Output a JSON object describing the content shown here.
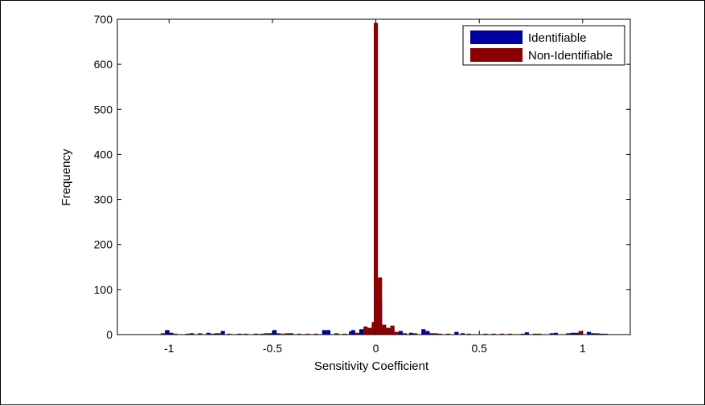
{
  "chart_data": {
    "type": "bar",
    "title": "",
    "xlabel": "Sensitivity Coefficient",
    "ylabel": "Frequency",
    "xlim": [
      -1.25,
      1.23
    ],
    "ylim": [
      0,
      700
    ],
    "xticks": [
      -1,
      -0.5,
      0,
      0.5,
      1
    ],
    "xtick_labels": [
      "-1",
      "-0.5",
      "0",
      "0.5",
      "1"
    ],
    "yticks": [
      0,
      100,
      200,
      300,
      400,
      500,
      600,
      700
    ],
    "ytick_labels": [
      "0",
      "100",
      "200",
      "300",
      "400",
      "500",
      "600",
      "700"
    ],
    "grid": false,
    "legend_position": "top-right",
    "bar_width": 0.02,
    "series": [
      {
        "name": "Identifiable",
        "color": "#0000a0",
        "bars": [
          {
            "x": -1.01,
            "y": 10
          },
          {
            "x": -0.99,
            "y": 4
          },
          {
            "x": -0.89,
            "y": 3
          },
          {
            "x": -0.81,
            "y": 4
          },
          {
            "x": -0.77,
            "y": 3
          },
          {
            "x": -0.74,
            "y": 8
          },
          {
            "x": -0.66,
            "y": 2
          },
          {
            "x": -0.58,
            "y": 2
          },
          {
            "x": -0.51,
            "y": 3
          },
          {
            "x": -0.49,
            "y": 10
          },
          {
            "x": -0.41,
            "y": 3
          },
          {
            "x": -0.25,
            "y": 10
          },
          {
            "x": -0.23,
            "y": 10
          },
          {
            "x": -0.12,
            "y": 7
          },
          {
            "x": -0.11,
            "y": 10
          },
          {
            "x": -0.07,
            "y": 12
          },
          {
            "x": -0.05,
            "y": 10
          },
          {
            "x": -0.03,
            "y": 12
          },
          {
            "x": -0.01,
            "y": 20
          },
          {
            "x": 0.0,
            "y": 122
          },
          {
            "x": 0.02,
            "y": 75
          },
          {
            "x": 0.04,
            "y": 13
          },
          {
            "x": 0.06,
            "y": 12
          },
          {
            "x": 0.08,
            "y": 12
          },
          {
            "x": 0.12,
            "y": 8
          },
          {
            "x": 0.17,
            "y": 4
          },
          {
            "x": 0.23,
            "y": 12
          },
          {
            "x": 0.25,
            "y": 8
          },
          {
            "x": 0.27,
            "y": 3
          },
          {
            "x": 0.39,
            "y": 6
          },
          {
            "x": 0.42,
            "y": 3
          },
          {
            "x": 0.73,
            "y": 5
          },
          {
            "x": 0.85,
            "y": 3
          },
          {
            "x": 0.87,
            "y": 4
          },
          {
            "x": 0.95,
            "y": 4
          },
          {
            "x": 0.97,
            "y": 4
          },
          {
            "x": 1.03,
            "y": 6
          },
          {
            "x": 1.05,
            "y": 3
          },
          {
            "x": 1.09,
            "y": 2
          }
        ]
      },
      {
        "name": "Non-Identifiable",
        "color": "#8b0000",
        "bars": [
          {
            "x": -1.03,
            "y": 3
          },
          {
            "x": -0.97,
            "y": 2
          },
          {
            "x": -0.91,
            "y": 2
          },
          {
            "x": -0.85,
            "y": 3
          },
          {
            "x": -0.79,
            "y": 2
          },
          {
            "x": -0.75,
            "y": 3
          },
          {
            "x": -0.71,
            "y": 2
          },
          {
            "x": -0.63,
            "y": 2
          },
          {
            "x": -0.55,
            "y": 2
          },
          {
            "x": -0.53,
            "y": 3
          },
          {
            "x": -0.47,
            "y": 3
          },
          {
            "x": -0.45,
            "y": 2
          },
          {
            "x": -0.43,
            "y": 3
          },
          {
            "x": -0.37,
            "y": 2
          },
          {
            "x": -0.33,
            "y": 2
          },
          {
            "x": -0.29,
            "y": 2
          },
          {
            "x": -0.19,
            "y": 3
          },
          {
            "x": -0.15,
            "y": 2
          },
          {
            "x": -0.09,
            "y": 4
          },
          {
            "x": -0.05,
            "y": 18
          },
          {
            "x": -0.03,
            "y": 15
          },
          {
            "x": -0.01,
            "y": 28
          },
          {
            "x": 0.0,
            "y": 692
          },
          {
            "x": 0.02,
            "y": 127
          },
          {
            "x": 0.04,
            "y": 22
          },
          {
            "x": 0.06,
            "y": 15
          },
          {
            "x": 0.08,
            "y": 20
          },
          {
            "x": 0.1,
            "y": 6
          },
          {
            "x": 0.14,
            "y": 3
          },
          {
            "x": 0.19,
            "y": 3
          },
          {
            "x": 0.29,
            "y": 3
          },
          {
            "x": 0.31,
            "y": 2
          },
          {
            "x": 0.35,
            "y": 2
          },
          {
            "x": 0.45,
            "y": 2
          },
          {
            "x": 0.53,
            "y": 2
          },
          {
            "x": 0.57,
            "y": 2
          },
          {
            "x": 0.61,
            "y": 2
          },
          {
            "x": 0.65,
            "y": 2
          },
          {
            "x": 0.71,
            "y": 2
          },
          {
            "x": 0.77,
            "y": 2
          },
          {
            "x": 0.79,
            "y": 2
          },
          {
            "x": 0.93,
            "y": 3
          },
          {
            "x": 0.99,
            "y": 8
          },
          {
            "x": 1.07,
            "y": 3
          },
          {
            "x": 1.11,
            "y": 2
          }
        ]
      }
    ]
  }
}
